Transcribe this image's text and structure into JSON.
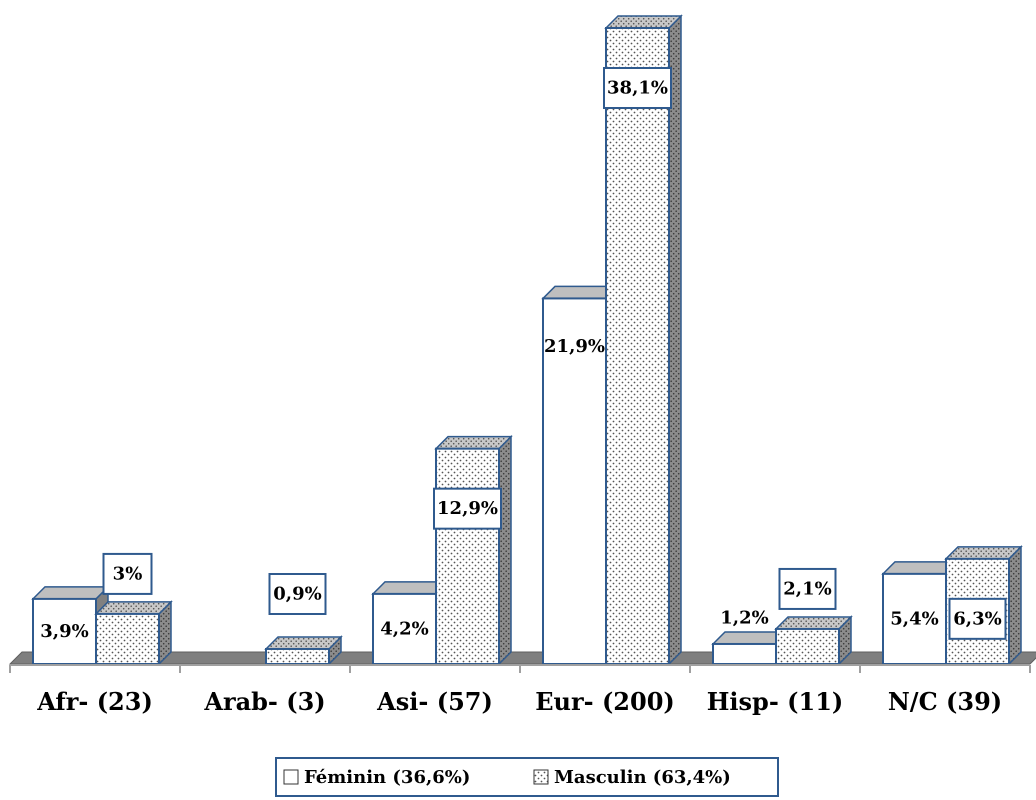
{
  "chart_data": {
    "type": "bar",
    "categories": [
      "Afr- (23)",
      "Arab- (3)",
      "Asi- (57)",
      "Eur- (200)",
      "Hisp- (11)",
      "N/C (39)"
    ],
    "series": [
      {
        "name": "Féminin (36,6%)",
        "values": [
          3.9,
          0,
          4.2,
          21.9,
          1.2,
          5.4
        ],
        "labels": [
          "3,9%",
          "",
          "4,2%",
          "21,9%",
          "1,2%",
          "5,4%"
        ]
      },
      {
        "name": "Masculin (63,4%)",
        "values": [
          3.0,
          0.9,
          12.9,
          38.1,
          2.1,
          6.3
        ],
        "labels": [
          "3%",
          "0,9%",
          "12,9%",
          "38,1%",
          "2,1%",
          "6,3%"
        ]
      }
    ],
    "ylim": [
      0,
      40
    ],
    "grid": false,
    "legend": "bottom",
    "colors": {
      "feminin_fill": "#ffffff",
      "masculin_dot": "#555555",
      "border": "#2f5a8e",
      "top_face": "#bfbfbf",
      "side_face": "#808080",
      "floor": "#7f7f7f"
    }
  }
}
